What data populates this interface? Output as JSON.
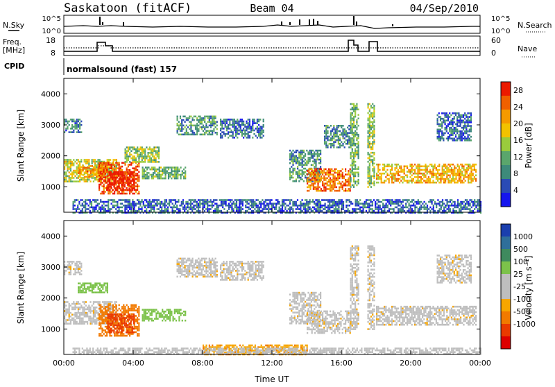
{
  "header": {
    "station": "Saskatoon (fitACF)",
    "beam": "Beam 04",
    "date": "04/Sep/2010"
  },
  "strip": {
    "nsky_label": "N.Sky",
    "nsearch_label": "N.Search",
    "nsky_ticks": [
      "10^5",
      "10^0"
    ],
    "nsearch_ticks": [
      "10^5",
      "10^0"
    ],
    "freq_label": "Freq.",
    "freq_unit": "[MHz]",
    "freq_ticks": [
      "18",
      "8"
    ],
    "nave_label": "Nave",
    "nave_ticks": [
      "60",
      "0"
    ],
    "cpid_label": "CPID",
    "cpid_value": "normalsound (fast) 157"
  },
  "colors": {
    "power": [
      "#1515ee",
      "#2a4bb5",
      "#3d8a7a",
      "#5aa66c",
      "#9acb3c",
      "#f2c200",
      "#f59a00",
      "#f06000",
      "#ec1a00"
    ],
    "velocity": [
      "#1a3fae",
      "#2f6f9a",
      "#3f8a5e",
      "#7cc24a",
      "#bebebe",
      "#bebebe",
      "#f7a600",
      "#f27a00",
      "#ea3a00",
      "#dd0000"
    ]
  },
  "chart_data": [
    {
      "type": "heatmap",
      "panel": "power",
      "x_range": [
        "00:00",
        "24:00"
      ],
      "x_ticks": [
        "00:00",
        "04:00",
        "08:00",
        "12:00",
        "16:00",
        "20:00",
        "00:00"
      ],
      "ylabel": "Slant Range [km]",
      "ylim": [
        180,
        4500
      ],
      "y_ticks": [
        "4000",
        "3000",
        "2000",
        "1000"
      ],
      "y_tick_values": [
        4000,
        3000,
        2000,
        1000
      ],
      "colorbar": {
        "label": "Power [dB]",
        "ticks": [
          "28",
          "24",
          "20",
          "16",
          "12",
          "8",
          "4"
        ],
        "tick_values": [
          28,
          24,
          20,
          16,
          12,
          8,
          4
        ],
        "range": [
          0,
          30
        ]
      },
      "bands": [
        {
          "t0": 0.0,
          "t1": 3.0,
          "r0": 1150,
          "r1": 1900,
          "v": 16
        },
        {
          "t0": 0.8,
          "t1": 2.5,
          "r0": 1300,
          "r1": 1700,
          "v": 22
        },
        {
          "t0": 2.0,
          "t1": 4.3,
          "r0": 800,
          "r1": 1800,
          "v": 26
        },
        {
          "t0": 2.5,
          "t1": 4.0,
          "r0": 900,
          "r1": 1500,
          "v": 30
        },
        {
          "t0": 0.0,
          "t1": 1.0,
          "r0": 2750,
          "r1": 3200,
          "v": 8
        },
        {
          "t0": 3.5,
          "t1": 5.5,
          "r0": 1800,
          "r1": 2300,
          "v": 14
        },
        {
          "t0": 4.5,
          "t1": 7.0,
          "r0": 1250,
          "r1": 1650,
          "v": 12
        },
        {
          "t0": 6.5,
          "t1": 8.8,
          "r0": 2700,
          "r1": 3300,
          "v": 10
        },
        {
          "t0": 9.0,
          "t1": 11.5,
          "r0": 2600,
          "r1": 3200,
          "v": 7
        },
        {
          "t0": 13.0,
          "t1": 14.8,
          "r0": 1200,
          "r1": 2200,
          "v": 10
        },
        {
          "t0": 14.0,
          "t1": 16.5,
          "r0": 900,
          "r1": 1600,
          "v": 24
        },
        {
          "t0": 15.0,
          "t1": 16.5,
          "r0": 2300,
          "r1": 3000,
          "v": 9
        },
        {
          "t0": 16.5,
          "t1": 17.0,
          "r0": 1000,
          "r1": 3700,
          "v": 12
        },
        {
          "t0": 17.5,
          "t1": 17.9,
          "r0": 1000,
          "r1": 3700,
          "v": 14
        },
        {
          "t0": 18.0,
          "t1": 23.8,
          "r0": 1150,
          "r1": 1750,
          "v": 20
        },
        {
          "t0": 21.5,
          "t1": 23.5,
          "r0": 2500,
          "r1": 3400,
          "v": 6
        },
        {
          "t0": 0.5,
          "t1": 24.0,
          "r0": 180,
          "r1": 600,
          "v": 6
        }
      ]
    },
    {
      "type": "heatmap",
      "panel": "velocity",
      "x_range": [
        "00:00",
        "24:00"
      ],
      "x_ticks": [
        "00:00",
        "04:00",
        "08:00",
        "12:00",
        "16:00",
        "20:00",
        "00:00"
      ],
      "xlabel": "Time UT",
      "ylabel": "Slant Range [km]",
      "ylim": [
        180,
        4500
      ],
      "y_ticks": [
        "4000",
        "3000",
        "2000",
        "1000"
      ],
      "y_tick_values": [
        4000,
        3000,
        2000,
        1000
      ],
      "colorbar": {
        "label": "Velocity [m s⁻¹]",
        "ticks": [
          "1000",
          "500",
          "100",
          "25",
          "-25",
          "-100",
          "-500",
          "-1000"
        ]
      },
      "bands": [
        {
          "t0": 0.0,
          "t1": 3.0,
          "r0": 1150,
          "r1": 1900,
          "v": 0
        },
        {
          "t0": 0.8,
          "t1": 2.5,
          "r0": 2200,
          "r1": 2500,
          "v": 200
        },
        {
          "t0": 2.0,
          "t1": 4.3,
          "r0": 800,
          "r1": 1800,
          "v": -150
        },
        {
          "t0": 2.5,
          "t1": 4.0,
          "r0": 900,
          "r1": 1500,
          "v": -300
        },
        {
          "t0": 0.0,
          "t1": 1.0,
          "r0": 2750,
          "r1": 3200,
          "v": 0
        },
        {
          "t0": 4.5,
          "t1": 7.0,
          "r0": 1250,
          "r1": 1650,
          "v": 200
        },
        {
          "t0": 6.5,
          "t1": 8.8,
          "r0": 2700,
          "r1": 3300,
          "v": 0
        },
        {
          "t0": 9.0,
          "t1": 11.5,
          "r0": 2600,
          "r1": 3200,
          "v": 0
        },
        {
          "t0": 13.0,
          "t1": 14.8,
          "r0": 1200,
          "r1": 2200,
          "v": 0
        },
        {
          "t0": 14.0,
          "t1": 16.5,
          "r0": 900,
          "r1": 1600,
          "v": 0
        },
        {
          "t0": 16.5,
          "t1": 17.0,
          "r0": 1000,
          "r1": 3700,
          "v": 0
        },
        {
          "t0": 17.5,
          "t1": 17.9,
          "r0": 1000,
          "r1": 3700,
          "v": 0
        },
        {
          "t0": 18.0,
          "t1": 23.8,
          "r0": 1150,
          "r1": 1750,
          "v": 0
        },
        {
          "t0": 21.5,
          "t1": 23.5,
          "r0": 2500,
          "r1": 3400,
          "v": 0
        },
        {
          "t0": 8.0,
          "t1": 14.0,
          "r0": 180,
          "r1": 500,
          "v": -80
        },
        {
          "t0": 0.5,
          "t1": 24.0,
          "r0": 180,
          "r1": 400,
          "v": 50
        }
      ]
    }
  ]
}
